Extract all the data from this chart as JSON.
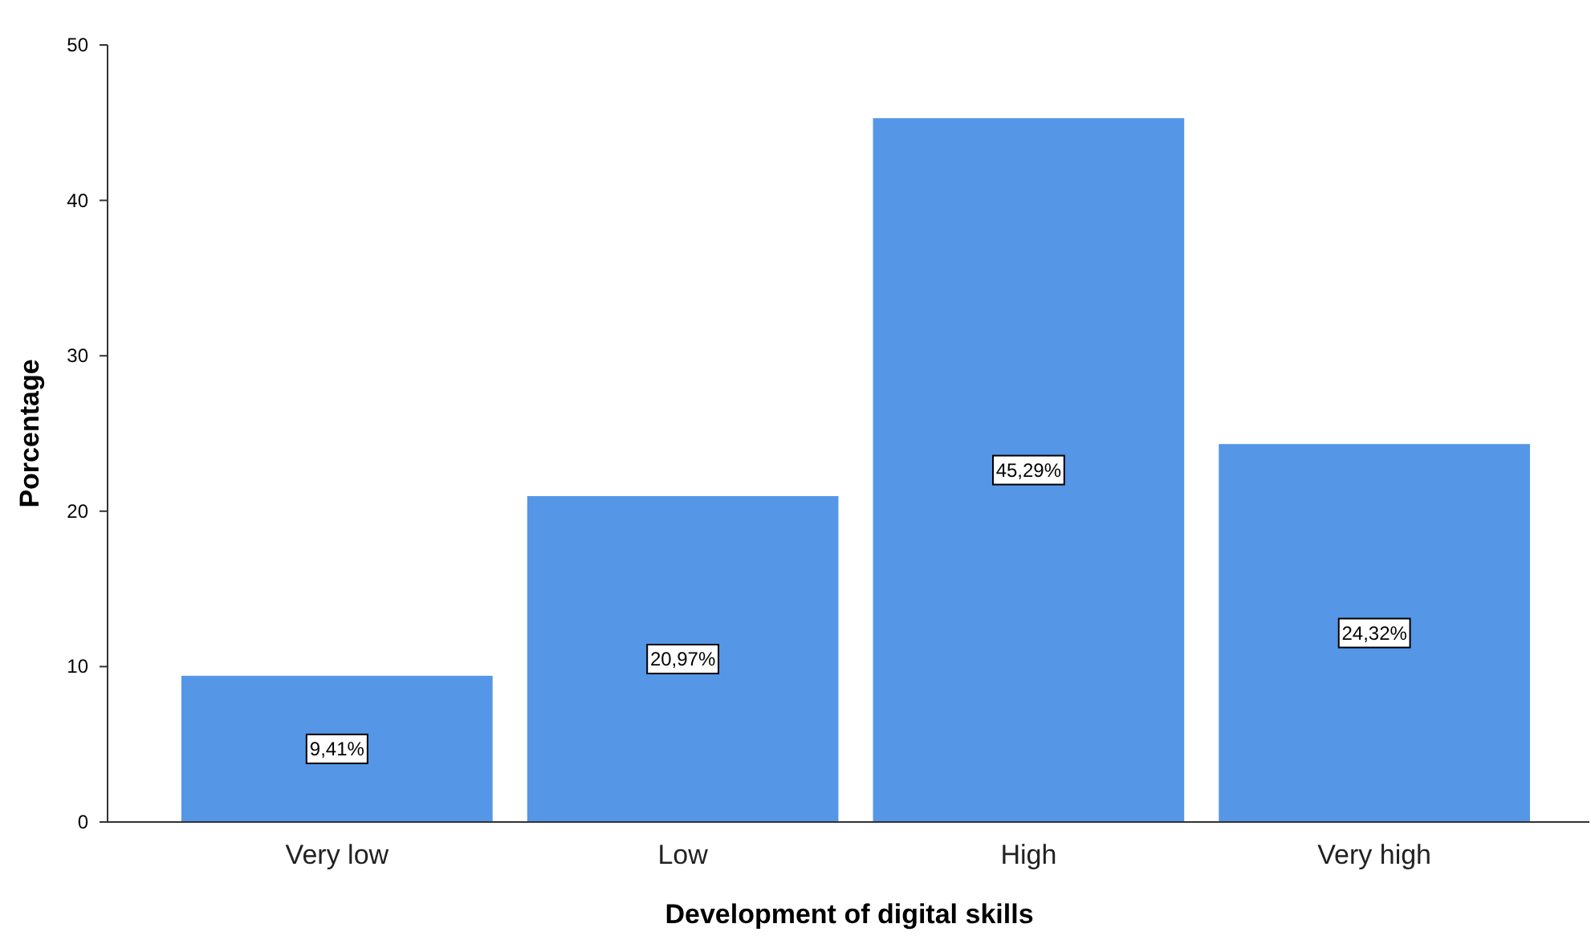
{
  "chart_data": {
    "type": "bar",
    "xlabel": "Development of digital skills",
    "ylabel": "Porcentage",
    "categories": [
      "Very low",
      "Low",
      "High",
      "Very high"
    ],
    "values": [
      9.41,
      20.97,
      45.29,
      24.32
    ],
    "value_labels": [
      "9,41%",
      "20,97%",
      "45,29%",
      "24,32%"
    ],
    "color": "#5596e6",
    "ylim": [
      0,
      50
    ],
    "yticks": [
      0,
      10,
      20,
      30,
      40,
      50
    ]
  }
}
